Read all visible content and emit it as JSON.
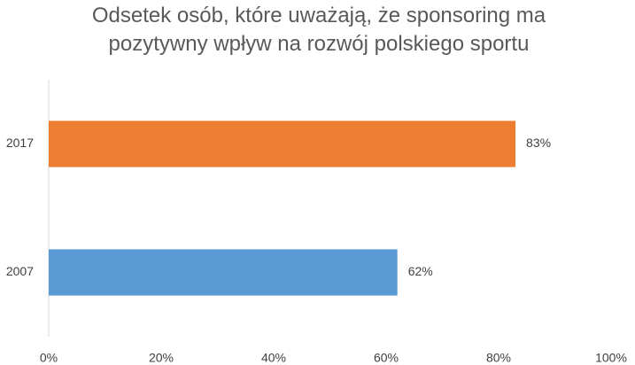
{
  "chart_data": {
    "type": "barh",
    "title": "Odsetek osób, które uważają, że sponsoring ma pozytywny wpływ na rozwój polskiego sportu",
    "categories": [
      "2017",
      "2007"
    ],
    "values": [
      83,
      62
    ],
    "value_labels": [
      "83%",
      "62%"
    ],
    "colors": [
      "#ed7d31",
      "#5b9bd5"
    ],
    "xlim": [
      0,
      100
    ],
    "xticks": [
      {
        "value": 0,
        "label": "0%"
      },
      {
        "value": 20,
        "label": "20%"
      },
      {
        "value": 40,
        "label": "40%"
      },
      {
        "value": 60,
        "label": "60%"
      },
      {
        "value": 80,
        "label": "80%"
      },
      {
        "value": 100,
        "label": "100%"
      }
    ],
    "grid": false
  }
}
